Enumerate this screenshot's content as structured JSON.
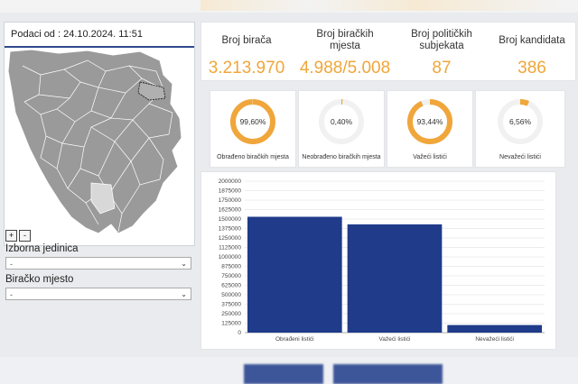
{
  "header": {
    "timestamp_label": "Podaci od : 24.10.2024. 11:51"
  },
  "map": {
    "zoom_in": "+",
    "zoom_out": "-"
  },
  "filters": {
    "unit_label": "Izborna jedinica",
    "unit_value": "-",
    "station_label": "Biračko mjesto",
    "station_value": "-"
  },
  "stats": [
    {
      "label": "Broj birača",
      "value": "3.213.970"
    },
    {
      "label": "Broj biračkih mjesta",
      "value": "4.988/5.008"
    },
    {
      "label": "Broj političkih subjekata",
      "value": "87"
    },
    {
      "label": "Broj kandidata",
      "value": "386"
    }
  ],
  "gauges": [
    {
      "value": "99,60%",
      "percent": 99.6,
      "caption": "Obrađeno biračkih mjesta"
    },
    {
      "value": "0,40%",
      "percent": 0.4,
      "caption": "Neobrađeno biračkih mjesta"
    },
    {
      "value": "93,44%",
      "percent": 93.44,
      "caption": "Važeći listići"
    },
    {
      "value": "6,56%",
      "percent": 6.56,
      "caption": "Nevažeći listići"
    }
  ],
  "colors": {
    "accent": "#f0a63a",
    "bar": "#1f3b8a",
    "gauge_track": "#f1f1f1"
  },
  "chart_data": {
    "type": "bar",
    "categories": [
      "Obrađeni listići",
      "Važeći listići",
      "Nevažeći listići"
    ],
    "values": [
      1530000,
      1430000,
      100000
    ],
    "ylim": [
      0,
      2000000
    ],
    "yticks": [
      0,
      125000,
      250000,
      375000,
      500000,
      625000,
      750000,
      875000,
      1000000,
      1125000,
      1250000,
      1375000,
      1500000,
      1625000,
      1750000,
      1875000,
      2000000
    ],
    "grid": true,
    "title": "",
    "xlabel": "",
    "ylabel": ""
  }
}
